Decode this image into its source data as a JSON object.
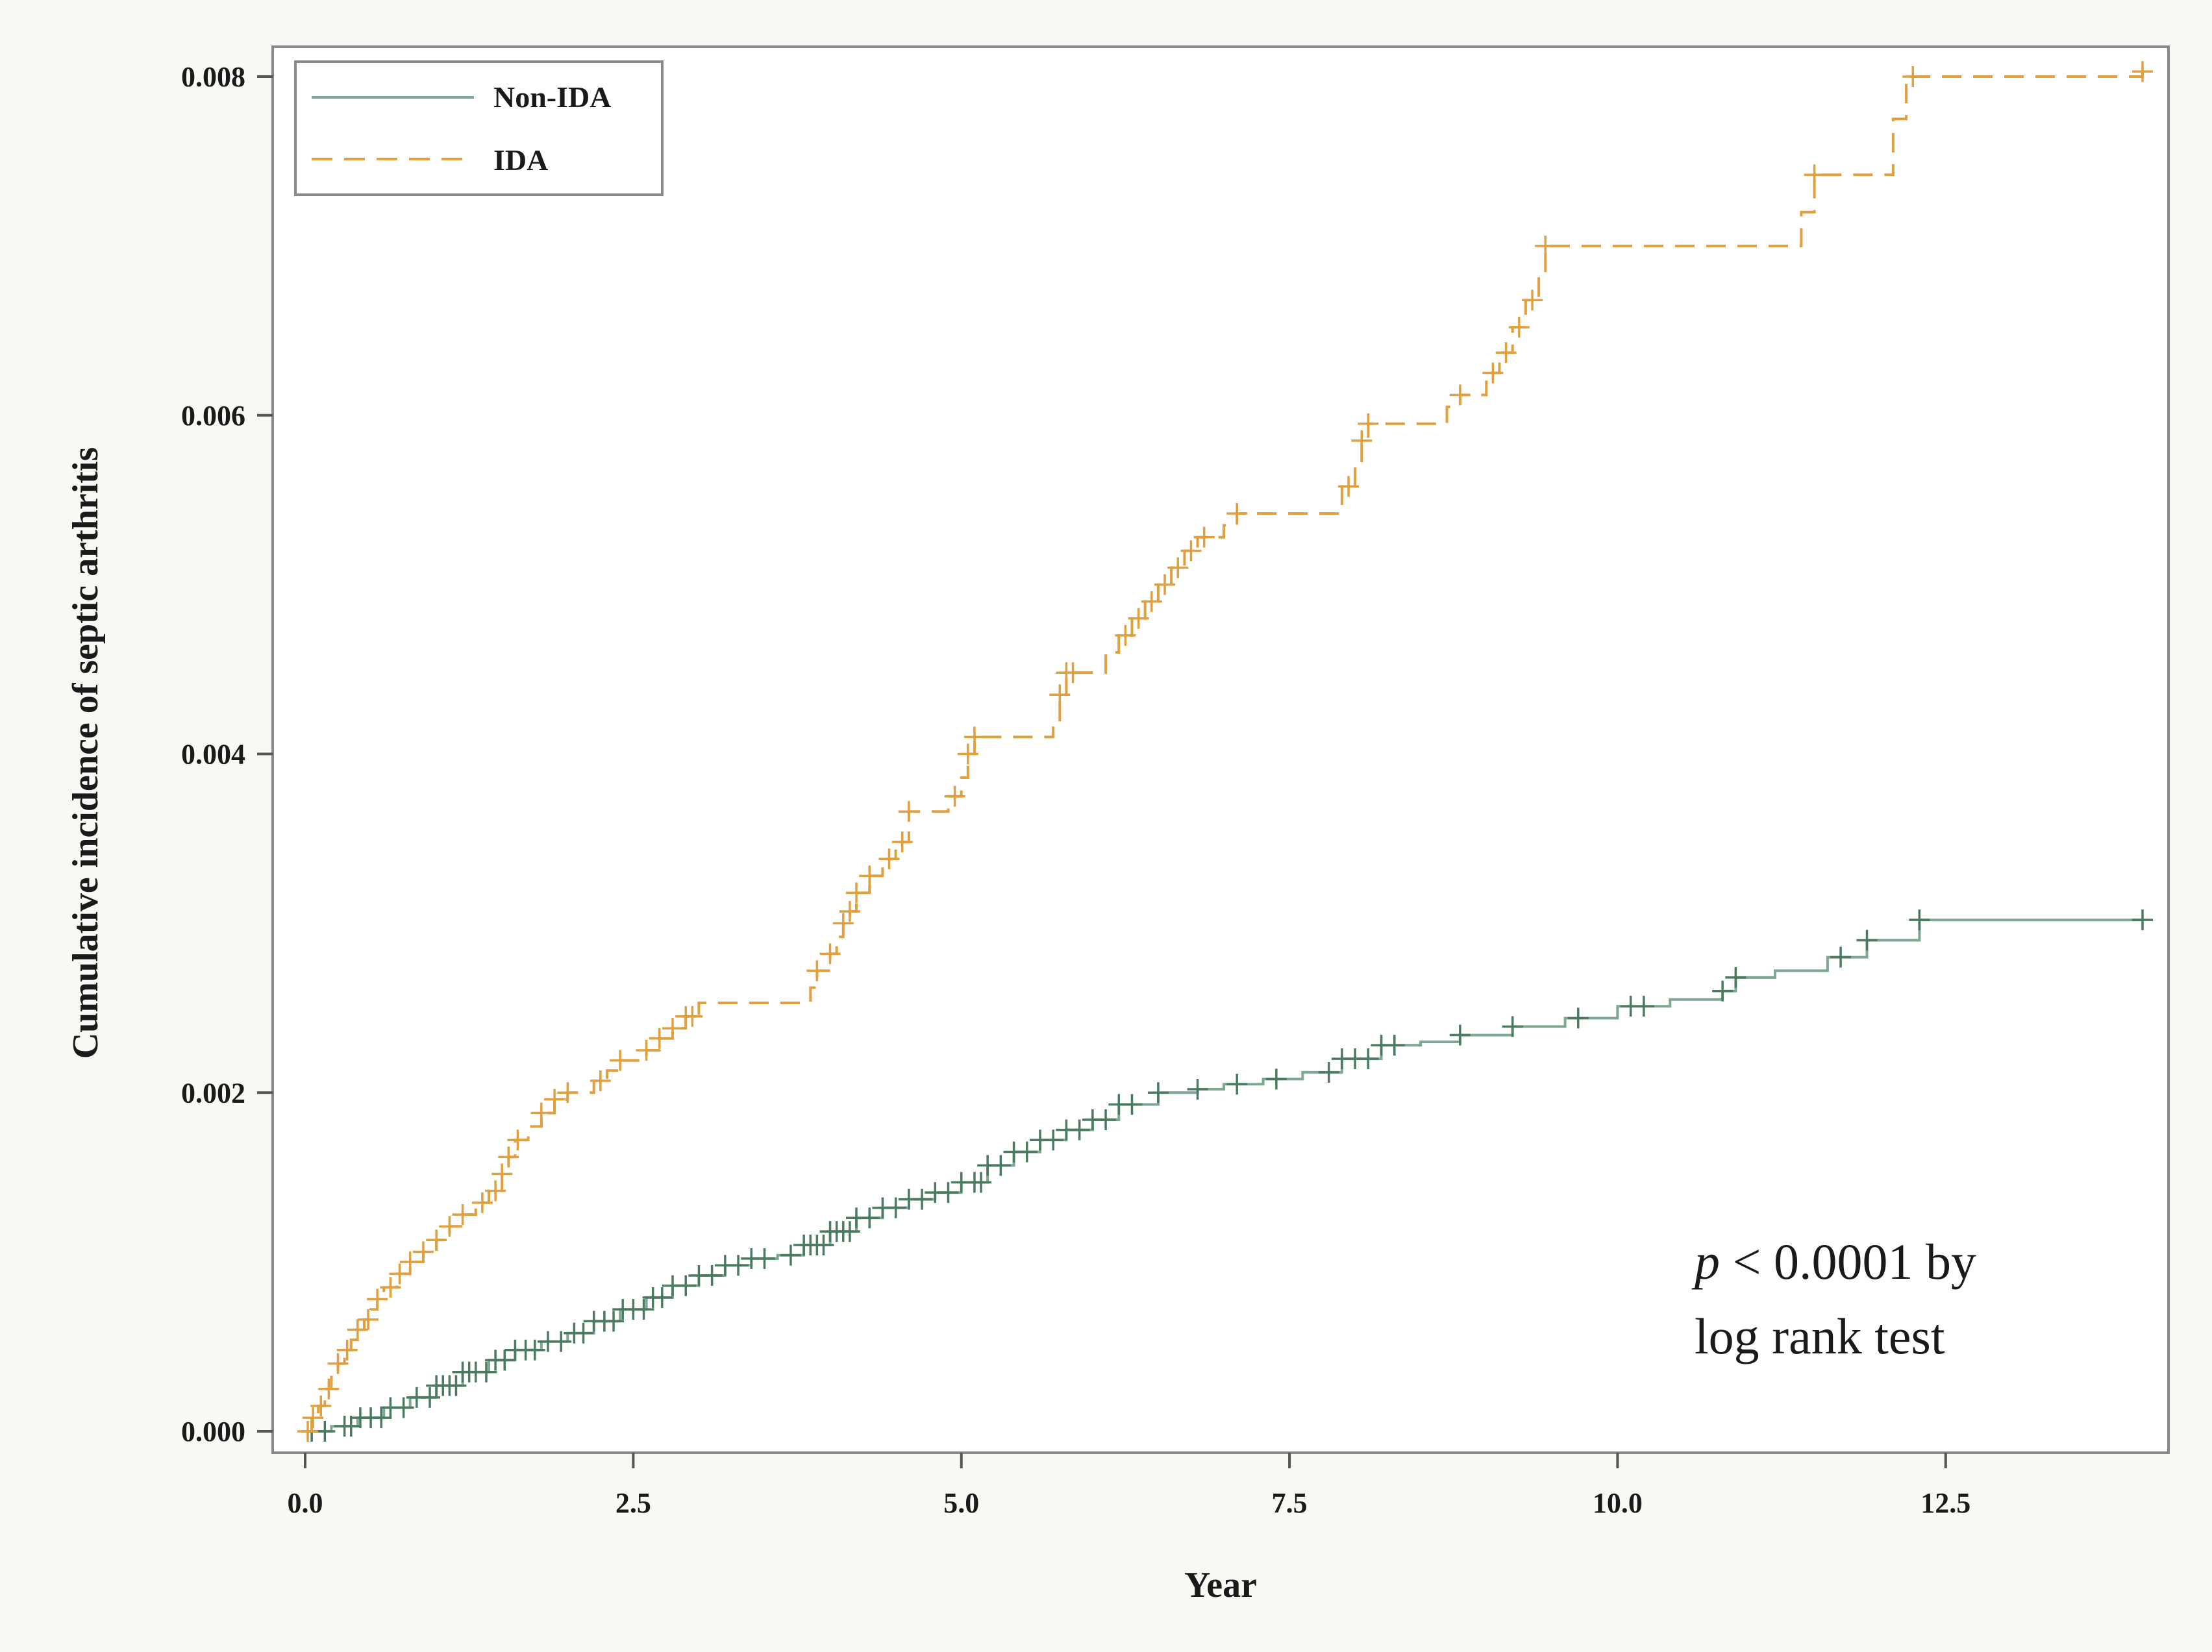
{
  "chart_data": {
    "type": "line",
    "subtype": "kaplan-meier-step",
    "title": "",
    "xlabel": "Year",
    "ylabel": "Cumulative incidence of septic arthritis",
    "xlim": [
      0,
      14
    ],
    "ylim": [
      0,
      0.008
    ],
    "xticks": [
      0,
      2.5,
      5,
      7.5,
      10,
      12.5
    ],
    "xtick_labels": [
      "0.0",
      "2.5",
      "5.0",
      "7.5",
      "10.0",
      "12.5"
    ],
    "yticks": [
      0,
      0.002,
      0.004,
      0.006,
      0.008
    ],
    "ytick_labels": [
      "0.000",
      "0.002",
      "0.004",
      "0.006",
      "0.008"
    ],
    "legend": {
      "placement": "top-left",
      "entries": [
        {
          "name": "Non-IDA",
          "color": "#7fa893",
          "style": "solid"
        },
        {
          "name": "IDA",
          "color": "#e0a03e",
          "style": "dashed"
        }
      ]
    },
    "annotation": {
      "p_symbol": "p",
      "line1_rest": " < 0.0001 by",
      "line2": "log rank test",
      "placement": "bottom-right"
    },
    "series": [
      {
        "name": "Non-IDA",
        "color": "#7fa893",
        "censor_color": "#4a7a60",
        "style": "solid",
        "x": [
          0,
          0.2,
          0.4,
          0.6,
          0.8,
          1.0,
          1.2,
          1.4,
          1.6,
          1.8,
          2.0,
          2.2,
          2.4,
          2.6,
          2.8,
          3.0,
          3.2,
          3.4,
          3.6,
          3.8,
          4.0,
          4.2,
          4.4,
          4.6,
          4.8,
          5.0,
          5.2,
          5.4,
          5.6,
          5.8,
          6.0,
          6.2,
          6.5,
          6.8,
          7.0,
          7.3,
          7.6,
          7.9,
          8.2,
          8.5,
          8.8,
          9.2,
          9.6,
          10.0,
          10.4,
          10.8,
          10.9,
          11.2,
          11.5,
          11.6,
          11.8,
          11.9,
          12.2,
          12.3,
          14.0
        ],
        "y": [
          0,
          3e-05,
          8e-05,
          0.00014,
          0.0002,
          0.00027,
          0.00035,
          0.00042,
          0.00048,
          0.00053,
          0.00058,
          0.00065,
          0.00072,
          0.00079,
          0.00086,
          0.00092,
          0.00098,
          0.00102,
          0.00104,
          0.0011,
          0.00118,
          0.00126,
          0.00132,
          0.00137,
          0.00141,
          0.00147,
          0.00157,
          0.00165,
          0.00172,
          0.00178,
          0.00184,
          0.00193,
          0.002,
          0.00202,
          0.00205,
          0.00208,
          0.00212,
          0.0022,
          0.00228,
          0.0023,
          0.00234,
          0.00239,
          0.00244,
          0.00251,
          0.00255,
          0.0026,
          0.00268,
          0.00272,
          0.00272,
          0.0028,
          0.0028,
          0.0029,
          0.0029,
          0.00302,
          0.00302
        ],
        "censor_x": [
          0.05,
          0.15,
          0.3,
          0.35,
          0.42,
          0.5,
          0.58,
          0.65,
          0.75,
          0.85,
          0.95,
          1.0,
          1.05,
          1.1,
          1.15,
          1.2,
          1.25,
          1.3,
          1.38,
          1.45,
          1.52,
          1.6,
          1.68,
          1.75,
          1.85,
          1.95,
          2.05,
          2.12,
          2.2,
          2.28,
          2.35,
          2.42,
          2.5,
          2.58,
          2.65,
          2.72,
          2.8,
          2.9,
          3.0,
          3.1,
          3.2,
          3.3,
          3.4,
          3.5,
          3.7,
          3.8,
          3.85,
          3.9,
          3.95,
          4.0,
          4.05,
          4.1,
          4.15,
          4.2,
          4.3,
          4.4,
          4.5,
          4.6,
          4.7,
          4.8,
          4.9,
          5.0,
          5.1,
          5.15,
          5.2,
          5.3,
          5.4,
          5.5,
          5.6,
          5.7,
          5.8,
          5.9,
          6.0,
          6.1,
          6.2,
          6.3,
          6.5,
          6.8,
          7.1,
          7.4,
          7.8,
          7.9,
          8.0,
          8.1,
          8.2,
          8.3,
          8.8,
          9.2,
          9.7,
          10.1,
          10.2,
          10.8,
          10.9,
          11.7,
          11.9,
          12.3,
          14.0
        ]
      },
      {
        "name": "IDA",
        "color": "#e0a03e",
        "censor_color": "#e0a03e",
        "style": "dashed",
        "x": [
          0,
          0.05,
          0.1,
          0.15,
          0.2,
          0.25,
          0.3,
          0.35,
          0.4,
          0.45,
          0.5,
          0.55,
          0.6,
          0.7,
          0.8,
          0.9,
          1.0,
          1.1,
          1.2,
          1.3,
          1.4,
          1.5,
          1.55,
          1.6,
          1.7,
          1.8,
          1.9,
          2.0,
          2.2,
          2.3,
          2.4,
          2.6,
          2.7,
          2.8,
          2.9,
          3.0,
          3.85,
          3.9,
          4.0,
          4.05,
          4.1,
          4.15,
          4.2,
          4.3,
          4.4,
          4.5,
          4.6,
          4.9,
          5.0,
          5.05,
          5.1,
          5.7,
          5.75,
          5.8,
          6.1,
          6.2,
          6.3,
          6.4,
          6.5,
          6.6,
          6.7,
          6.8,
          7.0,
          7.1,
          7.9,
          8.0,
          8.05,
          8.1,
          8.7,
          8.8,
          9.0,
          9.1,
          9.2,
          9.3,
          9.4,
          9.45,
          11.4,
          11.5,
          12.1,
          12.2,
          14.0
        ],
        "y": [
          0,
          8e-05,
          0.00015,
          0.00025,
          0.00032,
          0.0004,
          0.00048,
          0.00054,
          0.0006,
          0.00066,
          0.00072,
          0.00078,
          0.00085,
          0.00093,
          0.001,
          0.00106,
          0.00113,
          0.00121,
          0.00128,
          0.00135,
          0.00142,
          0.00152,
          0.00162,
          0.00172,
          0.0018,
          0.00188,
          0.00196,
          0.002,
          0.00207,
          0.00213,
          0.00219,
          0.00225,
          0.00232,
          0.00238,
          0.00245,
          0.00253,
          0.00262,
          0.00272,
          0.00282,
          0.00292,
          0.003,
          0.00307,
          0.00318,
          0.00328,
          0.00338,
          0.00348,
          0.00366,
          0.00375,
          0.00386,
          0.004,
          0.0041,
          0.0042,
          0.00435,
          0.00448,
          0.0046,
          0.0047,
          0.0048,
          0.0049,
          0.005,
          0.0051,
          0.0052,
          0.00528,
          0.00535,
          0.00542,
          0.00558,
          0.00572,
          0.00585,
          0.00595,
          0.00605,
          0.00612,
          0.00625,
          0.00637,
          0.00652,
          0.00668,
          0.00682,
          0.007,
          0.0072,
          0.00742,
          0.00775,
          0.008,
          0.00803
        ],
        "censor_x": [
          0.02,
          0.06,
          0.12,
          0.18,
          0.25,
          0.32,
          0.4,
          0.48,
          0.55,
          0.65,
          0.72,
          0.8,
          0.9,
          1.0,
          1.1,
          1.2,
          1.35,
          1.45,
          1.5,
          1.55,
          1.62,
          1.8,
          1.9,
          2.0,
          2.25,
          2.4,
          2.6,
          2.7,
          2.8,
          2.9,
          2.95,
          3.9,
          4.0,
          4.1,
          4.15,
          4.2,
          4.3,
          4.45,
          4.55,
          4.6,
          4.95,
          5.05,
          5.1,
          5.75,
          5.8,
          5.85,
          6.25,
          6.35,
          6.45,
          6.55,
          6.65,
          6.75,
          6.85,
          7.1,
          7.95,
          8.05,
          8.1,
          8.8,
          9.05,
          9.15,
          9.25,
          9.35,
          9.45,
          11.5,
          12.25,
          14.0
        ]
      }
    ]
  }
}
